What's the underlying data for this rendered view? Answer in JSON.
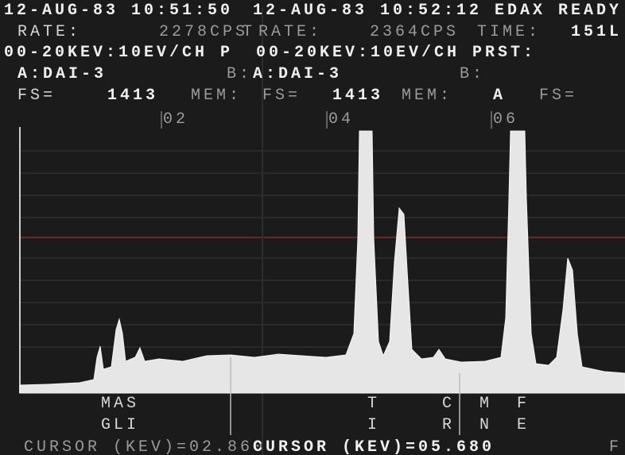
{
  "left_screen": {
    "timestamp": "12-AUG-83 10:51:50",
    "rate_label": "RATE:",
    "rate": "2278CPS",
    "time_label": "T",
    "range": "00-20KEV:10EV/CH P",
    "memory_a": "A:DAI-3",
    "memory_b": "B:",
    "fs_label": "FS=",
    "fs": "1413",
    "mem_label": "MEM:",
    "cursor": "CURSOR (KEV)=02.860"
  },
  "right_screen": {
    "timestamp": "12-AUG-83 10:52:12 EDAX READY",
    "rate_label": "RATE:",
    "rate": "2364CPS",
    "time_label": "TIME:",
    "time": "151L",
    "range": "00-20KEV:10EV/CH PRST:",
    "memory_a": "A:DAI-3",
    "memory_b": "B:",
    "fs_label": "FS=",
    "fs": "1413",
    "mem_label": "MEM:",
    "mem": "A",
    "fs2_label": "FS=",
    "cursor": "CURSOR (KEV)=05.680",
    "trailing": "F"
  },
  "energy_markers": [
    "02",
    "04",
    "06"
  ],
  "element_labels": [
    [
      "MAS",
      "GLI"
    ],
    [
      "T",
      "I"
    ],
    [
      "C",
      "R"
    ],
    [
      "M",
      "N"
    ],
    [
      "F",
      "E"
    ]
  ]
}
